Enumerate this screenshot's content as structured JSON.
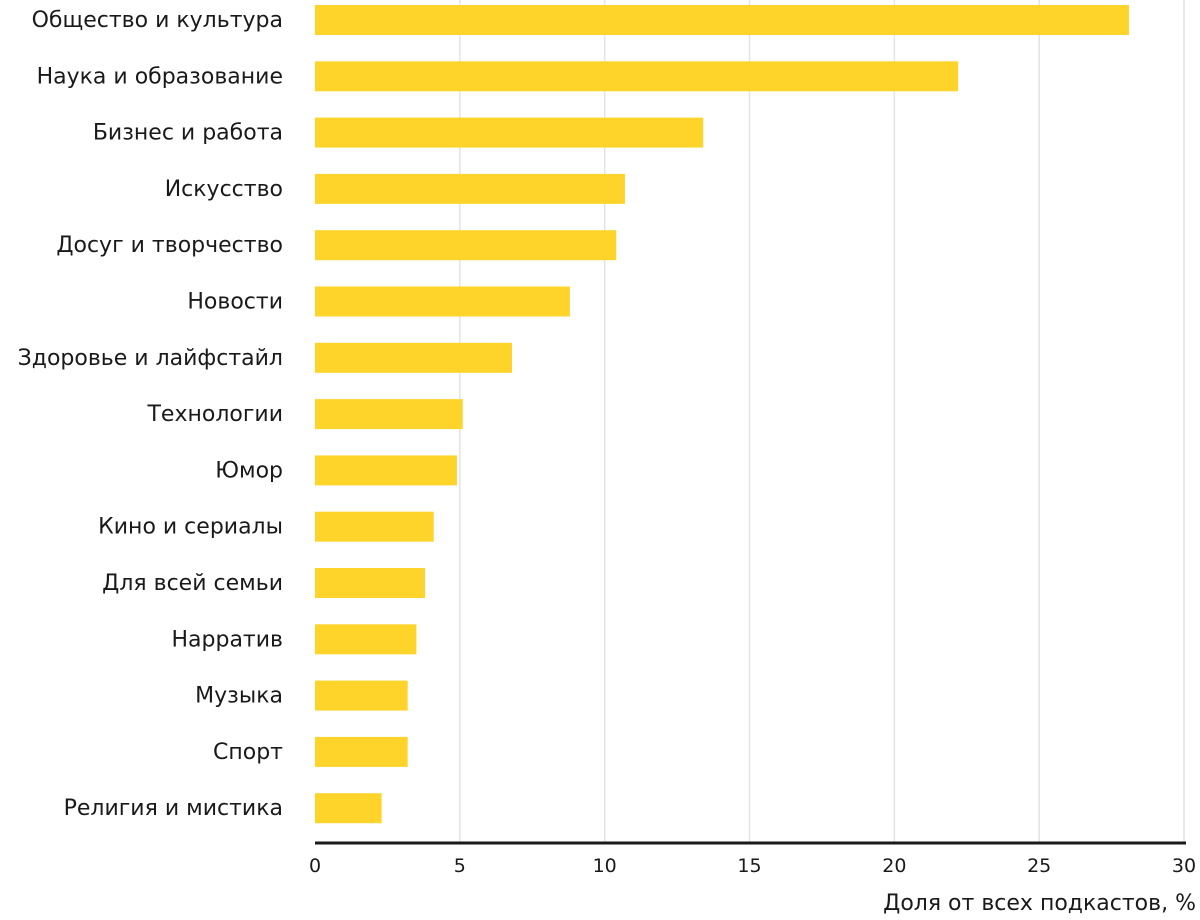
{
  "chart_data": {
    "type": "bar",
    "orientation": "horizontal",
    "categories": [
      "Общество и культура",
      "Наука и образование",
      "Бизнес и работа",
      "Искусство",
      "Досуг и творчество",
      "Новости",
      "Здоровье и лайфстайл",
      "Технологии",
      "Юмор",
      "Кино и сериалы",
      "Для всей семьи",
      "Нарратив",
      "Музыка",
      "Спорт",
      "Религия и мистика"
    ],
    "values": [
      28.1,
      22.2,
      13.4,
      10.7,
      10.4,
      8.8,
      6.8,
      5.1,
      4.9,
      4.1,
      3.8,
      3.5,
      3.2,
      3.2,
      2.3
    ],
    "xlabel": "Доля от всех подкастов, %",
    "ylabel": "",
    "xlim": [
      0,
      30
    ],
    "xticks": [
      "0",
      "5",
      "10",
      "15",
      "20",
      "25",
      "30"
    ],
    "grid": "vertical",
    "colors": {
      "bar": "#FED42B",
      "grid": "#e3e3e3",
      "axis": "#1a1a1a"
    }
  }
}
